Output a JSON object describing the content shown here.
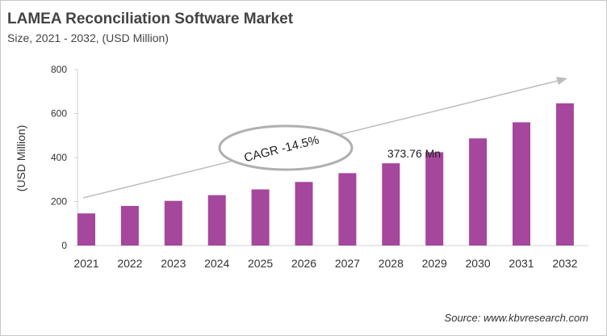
{
  "chart_data": {
    "type": "bar",
    "title": "LAMEA Reconciliation Software Market",
    "subtitle": "Size, 2021 - 2032, (USD Million)",
    "ylabel": "(USD Million)",
    "xlabel": "",
    "categories": [
      "2021",
      "2022",
      "2023",
      "2024",
      "2025",
      "2026",
      "2027",
      "2028",
      "2029",
      "2030",
      "2031",
      "2032"
    ],
    "values": [
      146,
      180,
      203,
      229,
      255,
      289,
      329,
      373.76,
      424,
      487,
      560,
      646
    ],
    "ylim": [
      0,
      800
    ],
    "yticks": [
      "0",
      "200",
      "400",
      "600",
      "800"
    ],
    "grid": false,
    "bar_color": "#a5479c",
    "annotations": {
      "data_label": "373.76 Mn",
      "cagr": "CAGR -14.5%"
    },
    "source": "Source: www.kbvresearch.com"
  }
}
